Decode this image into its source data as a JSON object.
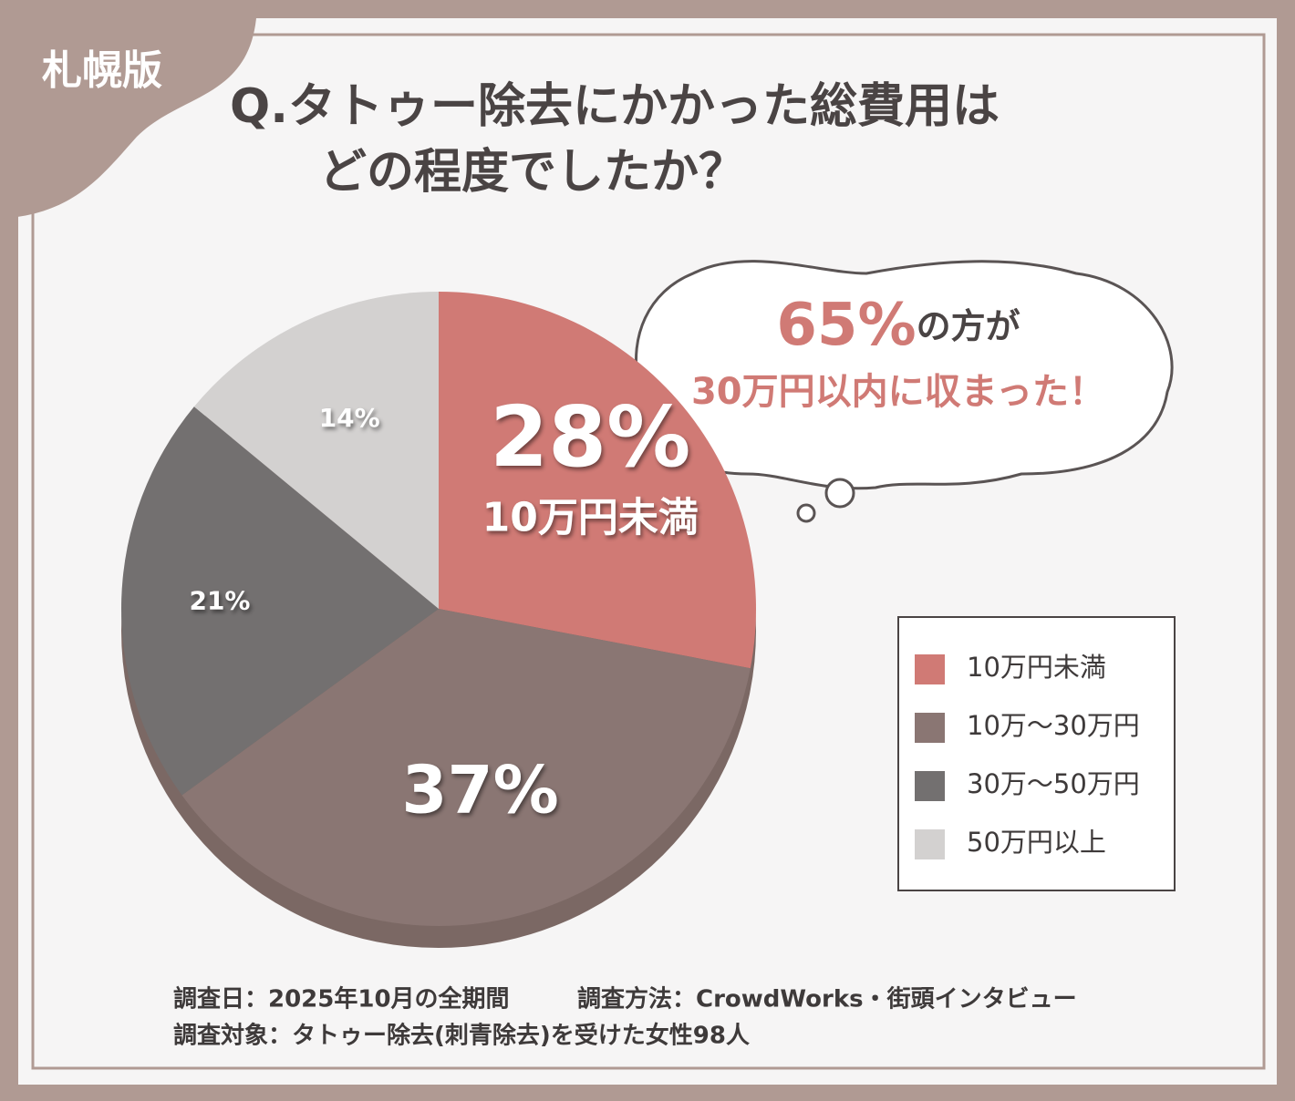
{
  "badge": "札幌版",
  "chart_data": {
    "type": "pie",
    "title": [
      "Q.タトゥー除去にかかった総費用は",
      "どの程度でしたか？"
    ],
    "categories": [
      "10万円未満",
      "10万～30万円",
      "30万～50万円",
      "50万円以上"
    ],
    "values": [
      28,
      37,
      21,
      14
    ],
    "value_labels": [
      "28%",
      "37%",
      "21%",
      "14%"
    ],
    "colors": [
      "#d07a75",
      "#8a7673",
      "#737070",
      "#d3d1d0"
    ],
    "annotations": [
      "65%",
      "の方が",
      "30万円以内に収まった！"
    ],
    "legend": "right"
  },
  "footer": [
    "調査日：2025年10月の全期間",
    "調査方法：CrowdWorks・街頭インタビュー",
    "調査対象：タトゥー除去(刺青除去)を受けた女性98人"
  ]
}
